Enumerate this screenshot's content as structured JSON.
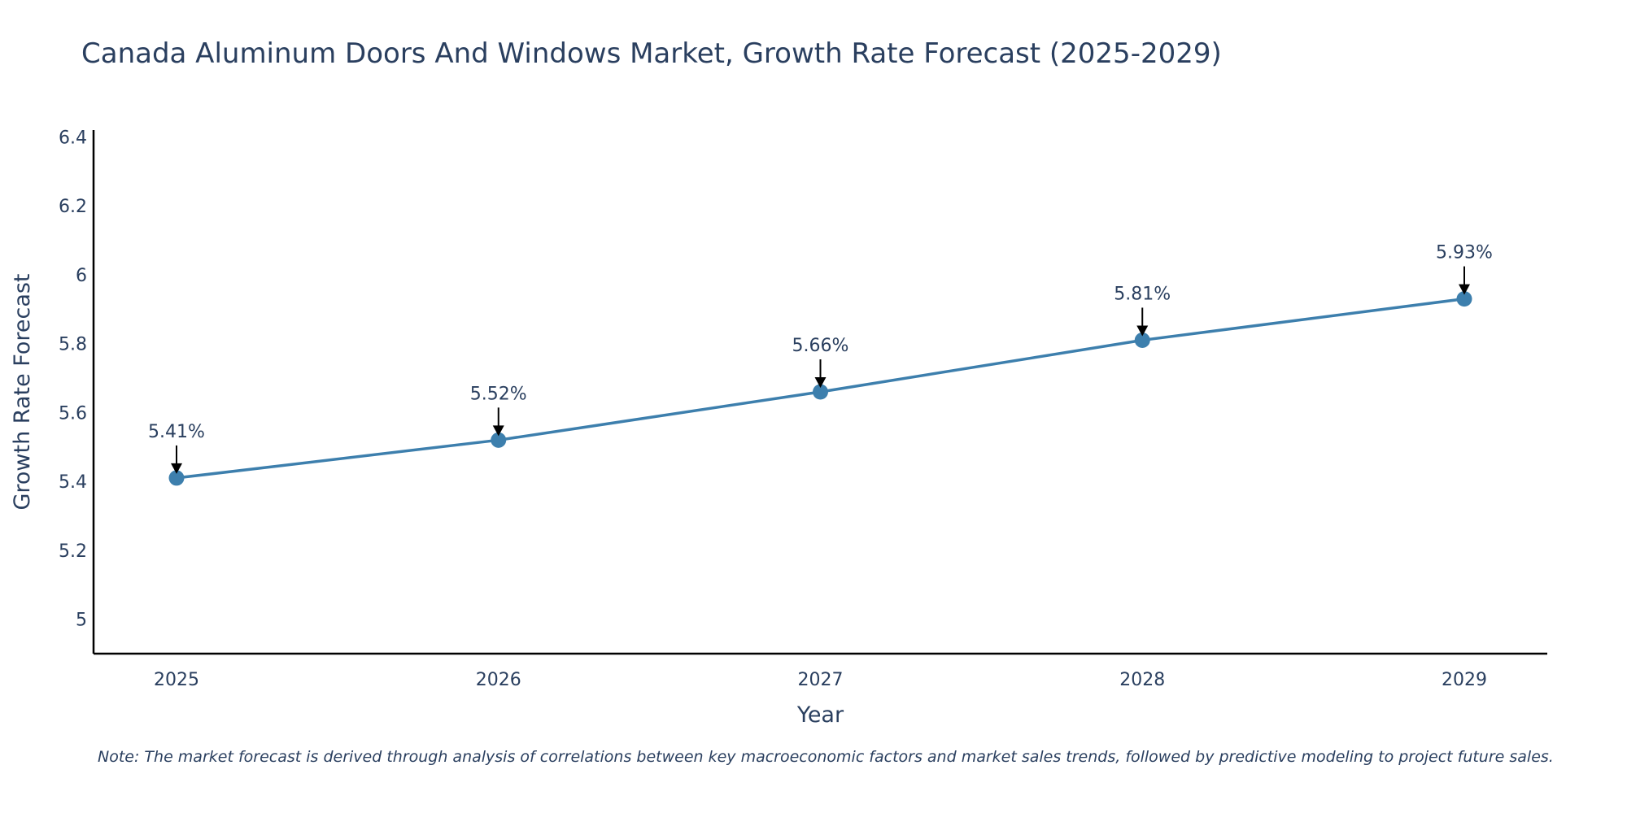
{
  "chart_data": {
    "type": "line",
    "title": "Canada Aluminum Doors And Windows Market, Growth Rate Forecast (2025-2029)",
    "xlabel": "Year",
    "ylabel": "Growth Rate Forecast",
    "categories": [
      "2025",
      "2026",
      "2027",
      "2028",
      "2029"
    ],
    "series": [
      {
        "name": "Growth Rate Forecast",
        "values": [
          5.41,
          5.52,
          5.66,
          5.81,
          5.93
        ]
      }
    ],
    "data_labels": [
      "5.41%",
      "5.52%",
      "5.66%",
      "5.81%",
      "5.93%"
    ],
    "ylim": [
      4.9,
      6.42
    ],
    "yticks": [
      5,
      5.2,
      5.4,
      5.6,
      5.8,
      6,
      6.2,
      6.4
    ],
    "ytick_labels": [
      "5",
      "5.2",
      "5.4",
      "5.6",
      "5.8",
      "6",
      "6.2",
      "6.4"
    ],
    "grid": false,
    "line_color": "#3d7fad",
    "marker_color": "#3d7fad",
    "note": "Note: The market forecast is derived through analysis of correlations between key macroeconomic factors and market sales trends, followed by predictive modeling to project future sales."
  }
}
